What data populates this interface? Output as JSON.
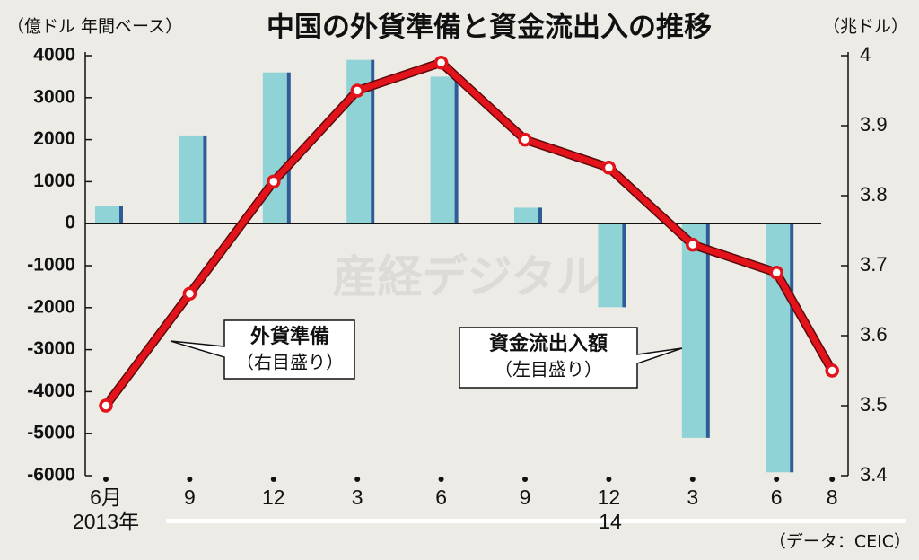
{
  "chart_data": {
    "type": "bar-line",
    "title": "中国の外貨準備と資金流出入の推移",
    "y_label": "（億ドル 年間ベース）",
    "y2_label": "（兆ドル）",
    "source": "（データ：CEIC）",
    "watermark": "産経デジタル",
    "categories": [
      "6月",
      "9",
      "12",
      "3",
      "6",
      "9",
      "12",
      "3",
      "6",
      "8"
    ],
    "year_labels": [
      "2013年",
      "14"
    ],
    "series": [
      {
        "name": "資金流出入額",
        "name_note": "（左目盛り）",
        "type": "bar",
        "color": "#8fd3d6",
        "edge_color": "#2e5c96",
        "values": [
          430,
          2100,
          3600,
          3900,
          3500,
          380,
          -1990,
          -5100,
          -5920,
          null
        ]
      },
      {
        "name": "外貨準備",
        "name_note": "（右目盛り）",
        "type": "line",
        "axis": "y2",
        "color": "#e3131b",
        "values": [
          3.5,
          3.66,
          3.82,
          3.95,
          3.99,
          3.88,
          3.84,
          3.73,
          3.69,
          3.55
        ]
      }
    ],
    "ylim": [
      -6000,
      4000
    ],
    "yticks": [
      -6000,
      -5000,
      -4000,
      -3000,
      -2000,
      -1000,
      0,
      1000,
      2000,
      3000,
      4000
    ],
    "y2lim": [
      3.4,
      4
    ],
    "y2ticks": [
      3.4,
      3.5,
      3.6,
      3.7,
      3.8,
      3.9,
      4
    ]
  }
}
